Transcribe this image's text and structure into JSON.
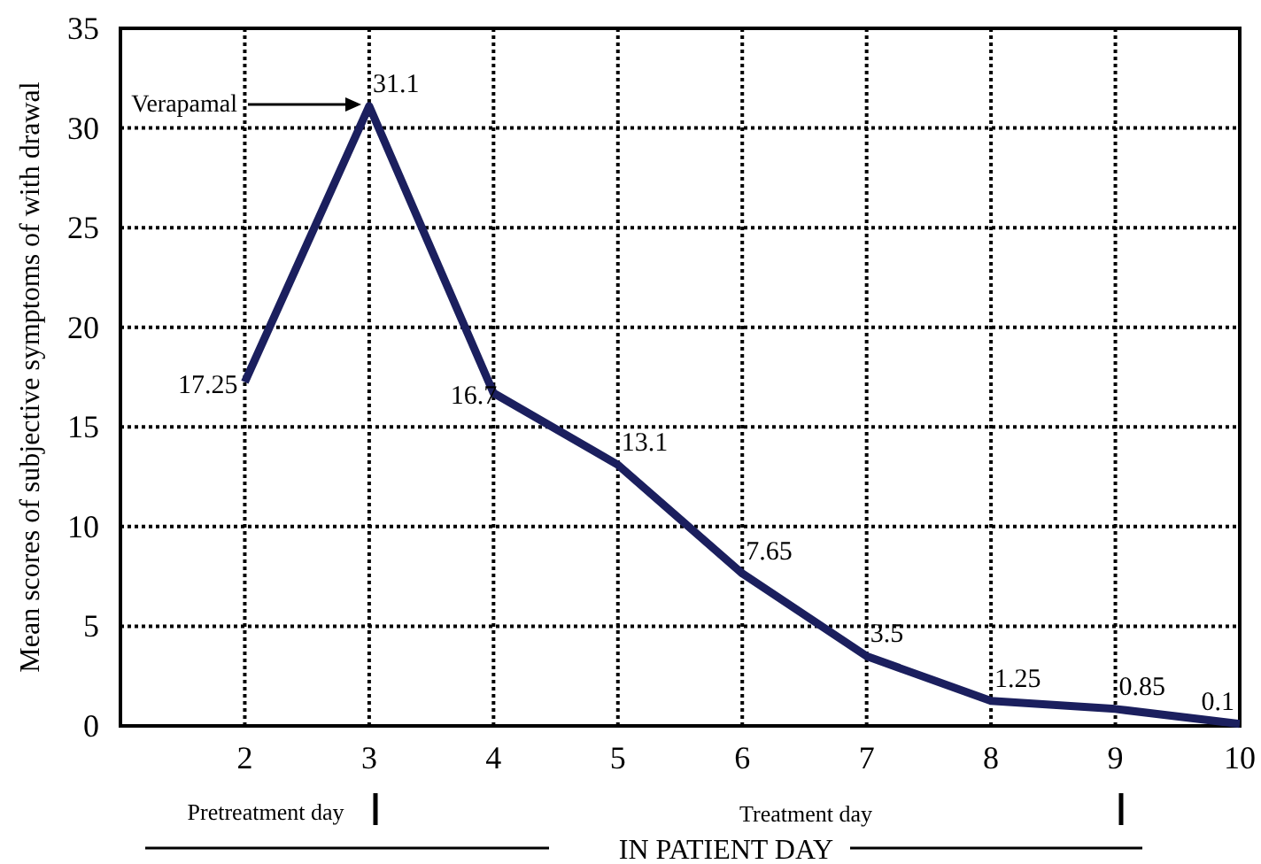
{
  "chart_data": {
    "type": "line",
    "ylabel": "Mean scores of subjective symptoms of with drawal",
    "x": [
      2,
      3,
      4,
      5,
      6,
      7,
      8,
      9,
      10
    ],
    "series": [
      {
        "color": "#1b1f5e",
        "values": [
          17.25,
          31.1,
          16.7,
          13.1,
          7.65,
          3.5,
          1.25,
          0.85,
          0.1
        ]
      }
    ],
    "xlim": [
      1,
      10
    ],
    "xticks": [
      2,
      3,
      4,
      5,
      6,
      7,
      8,
      9,
      10
    ],
    "ylim": [
      0,
      35
    ],
    "yticks": [
      0,
      5,
      10,
      15,
      20,
      25,
      30,
      35
    ],
    "grid": true,
    "marker": "none",
    "line_style": "solid",
    "data_labels": true,
    "annotations": [
      "Verapamal",
      "Pretreatment day",
      "Treatment day",
      "IN PATIENT DAY"
    ]
  }
}
